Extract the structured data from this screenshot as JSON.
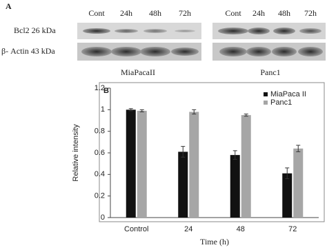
{
  "blot": {
    "panel_label": "A",
    "columns_left": [
      "Cont",
      "24h",
      "48h",
      "72h"
    ],
    "columns_right": [
      "Cont",
      "24h",
      "48h",
      "72h"
    ],
    "rows": [
      "Bcl2 26 kDa",
      "β- Actin 43 kDa"
    ],
    "groups": [
      "MiaPacaII",
      "Panc1"
    ]
  },
  "chart_data": {
    "type": "bar",
    "panel_label": "B",
    "x_label": "Time (h)",
    "y_label": "Relative intensity",
    "categories": [
      "Control",
      "24",
      "48",
      "72"
    ],
    "series": [
      {
        "name": "MiaPaca II",
        "color": "#111111",
        "values": [
          1.0,
          0.61,
          0.58,
          0.41
        ],
        "errors": [
          0.01,
          0.05,
          0.04,
          0.05
        ]
      },
      {
        "name": "Panc1",
        "color": "#a6a6a6",
        "values": [
          0.99,
          0.98,
          0.95,
          0.64
        ],
        "errors": [
          0.01,
          0.02,
          0.01,
          0.03
        ]
      }
    ],
    "ylim": [
      0,
      1.2
    ],
    "yticks": [
      0,
      0.2,
      0.4,
      0.6,
      0.8,
      1,
      1.2
    ],
    "grid": false,
    "legend": "top-right"
  }
}
